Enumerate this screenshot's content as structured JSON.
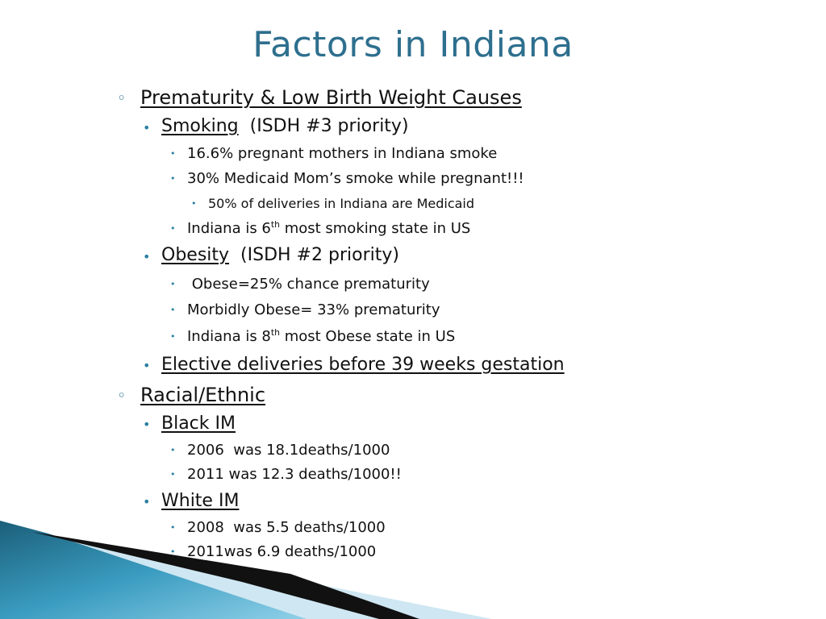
{
  "title": "Factors in Indiana",
  "accent_color": "#2e6f8e",
  "bullets": {
    "level1": "◦",
    "level2": "•"
  },
  "sections": {
    "prematurity": {
      "heading": "Prematurity & Low Birth Weight Causes",
      "smoking": {
        "label": "Smoking",
        "note": "(ISDH #3 priority)",
        "item1": "16.6% pregnant mothers in Indiana smoke",
        "item2": "30% Medicaid Mom’s smoke while pregnant!!!",
        "item2_sub": "50% of deliveries in Indiana are Medicaid",
        "item3_pre": "Indiana is 6",
        "item3_sup": "th",
        "item3_post": " most smoking state in US"
      },
      "obesity": {
        "label": "Obesity",
        "note": "(ISDH #2 priority)",
        "item1": " Obese=25% chance prematurity",
        "item2": "Morbidly Obese= 33% prematurity",
        "item3_pre": "Indiana is 8",
        "item3_sup": "th",
        "item3_post": " most Obese state in US"
      },
      "elective": "Elective deliveries before 39 weeks gestation"
    },
    "racial": {
      "heading": "Racial/Ethnic",
      "black": {
        "label": "Black IM",
        "item1": "2006  was 18.1deaths/1000",
        "item2": "2011 was 12.3 deaths/1000!!"
      },
      "white": {
        "label": "White IM",
        "item1": "2008  was 5.5 deaths/1000",
        "item2": "2011was 6.9 deaths/1000"
      }
    }
  }
}
